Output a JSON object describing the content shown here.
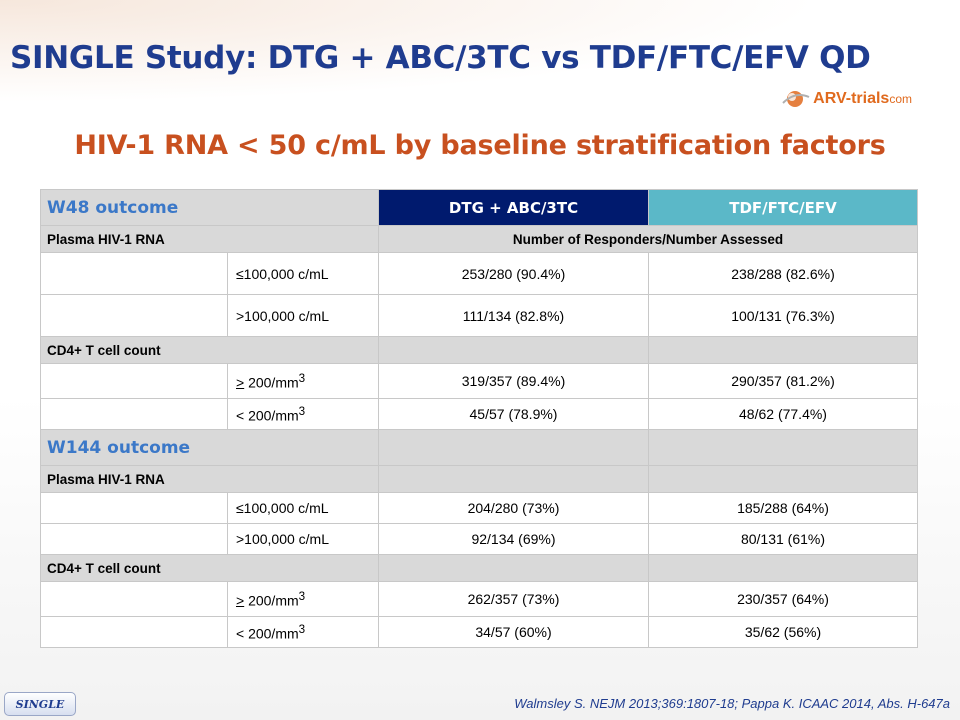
{
  "header": {
    "title": "SINGLE Study: DTG + ABC/3TC vs TDF/FTC/EFV QD",
    "logo": {
      "brand": "ARV-trials",
      "tld": "com"
    },
    "subtitle": "HIV-1 RNA < 50 c/mL by baseline stratification factors"
  },
  "table": {
    "w48_label": "W48 outcome",
    "col_dtg": "DTG + ABC/3TC",
    "col_tdf": "TDF/FTC/EFV",
    "plasma_label": "Plasma HIV-1 RNA",
    "responders_label": "Number of Responders/Number Assessed",
    "cd4_label": "CD4+ T cell count",
    "w144_label": "W144 outcome",
    "labels": {
      "le100k": "≤100,000 c/mL",
      "gt100k": ">100,000 c/mL",
      "ge200_sym": ">",
      "ge200_val": " 200/mm",
      "lt200": "< 200/mm",
      "sup3": "3"
    },
    "w48": {
      "le100k": {
        "dtg": "253/280 (90.4%)",
        "tdf": "238/288 (82.6%)"
      },
      "gt100k": {
        "dtg": "111/134 (82.8%)",
        "tdf": "100/131 (76.3%)"
      },
      "ge200": {
        "dtg": "319/357 (89.4%)",
        "tdf": "290/357 (81.2%)"
      },
      "lt200": {
        "dtg": "45/57 (78.9%)",
        "tdf": "48/62 (77.4%)"
      }
    },
    "w144": {
      "le100k": {
        "dtg": "204/280 (73%)",
        "tdf": "185/288 (64%)"
      },
      "gt100k": {
        "dtg": "92/134 (69%)",
        "tdf": "80/131 (61%)"
      },
      "ge200": {
        "dtg": "262/357 (73%)",
        "tdf": "230/357 (64%)"
      },
      "lt200": {
        "dtg": "34/57 (60%)",
        "tdf": "35/62 (56%)"
      }
    }
  },
  "footer": {
    "citation": "Walmsley S. NEJM 2013;369:1807-18; Pappa K. ICAAC 2014, Abs. H-647a",
    "badge": "SINGLE"
  },
  "colors": {
    "title": "#1f3c8f",
    "subtitle": "#c8501f",
    "dtg_header": "#001a6e",
    "tdf_header": "#5bb8c8",
    "outcome_text": "#3b78c8",
    "section_bg": "#d9d9d9"
  }
}
